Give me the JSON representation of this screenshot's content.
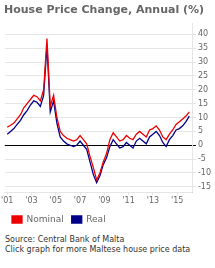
{
  "chart_data": {
    "type": "line",
    "title": "House Price Change, Annual (%)",
    "annotations": [
      "Source: Central Bank of Malta",
      "Click graph for more Maltese house price data"
    ],
    "x": [
      2001,
      2001.2727,
      2001.5455,
      2001.8182,
      2002.0909,
      2002.3636,
      2002.6364,
      2002.9091,
      2003.1818,
      2003.4545,
      2003.7273,
      2004,
      2004.2727,
      2004.5455,
      2004.8182,
      2005.0909,
      2005.3636,
      2005.6364,
      2005.9091,
      2006.1818,
      2006.4545,
      2006.7273,
      2007,
      2007.2727,
      2007.5455,
      2007.8182,
      2008.0909,
      2008.3636,
      2008.6364,
      2008.9091,
      2009.1818,
      2009.4545,
      2009.7273,
      2010,
      2010.2727,
      2010.5455,
      2010.8182,
      2011.0909,
      2011.3636,
      2011.6364,
      2011.9091,
      2012.1818,
      2012.4545,
      2012.7273,
      2013,
      2013.2727,
      2013.5455,
      2013.8182,
      2014.0909,
      2014.3636,
      2014.6364,
      2014.9091,
      2015.1818,
      2015.4545,
      2015.7273,
      2016
    ],
    "series": [
      {
        "name": "Nominal",
        "color": "#ee0000",
        "values": [
          6.5,
          7.2,
          8.0,
          9.5,
          11.0,
          13.5,
          15.0,
          16.5,
          18.0,
          17.5,
          16.0,
          20.0,
          38.5,
          14.0,
          18.0,
          10.0,
          5.0,
          3.5,
          2.5,
          2.0,
          1.5,
          2.0,
          3.5,
          2.0,
          0.5,
          -4.0,
          -8.0,
          -12.5,
          -10.0,
          -6.0,
          -3.0,
          2.0,
          4.5,
          3.0,
          1.5,
          2.0,
          3.5,
          2.5,
          2.0,
          4.0,
          5.0,
          4.0,
          3.0,
          5.5,
          6.0,
          7.0,
          5.5,
          3.0,
          2.0,
          4.0,
          5.5,
          7.5,
          8.5,
          9.5,
          10.5,
          12.0
        ]
      },
      {
        "name": "Real",
        "color": "#00008b",
        "values": [
          4.0,
          5.0,
          6.0,
          7.5,
          9.0,
          11.0,
          12.5,
          14.5,
          16.0,
          15.5,
          14.0,
          18.0,
          36.0,
          12.0,
          16.0,
          8.0,
          3.0,
          1.5,
          0.5,
          0.0,
          -0.5,
          0.0,
          1.5,
          0.0,
          -1.5,
          -6.0,
          -10.5,
          -13.5,
          -11.0,
          -7.0,
          -4.5,
          -0.5,
          2.0,
          0.5,
          -1.0,
          -0.5,
          1.0,
          0.0,
          -1.0,
          1.5,
          2.5,
          1.5,
          0.5,
          3.0,
          4.0,
          5.0,
          3.5,
          1.0,
          -0.5,
          2.0,
          3.5,
          5.5,
          6.0,
          7.0,
          8.5,
          10.5
        ]
      }
    ],
    "xlim": [
      2000.8,
      2016.3
    ],
    "xticks": [
      {
        "value": 2001,
        "label": "'01"
      },
      {
        "value": 2003,
        "label": "'03"
      },
      {
        "value": 2005,
        "label": "'05"
      },
      {
        "value": 2007,
        "label": "'07"
      },
      {
        "value": 2009,
        "label": "'09"
      },
      {
        "value": 2011,
        "label": "'11"
      },
      {
        "value": 2013,
        "label": "'13"
      },
      {
        "value": 2015,
        "label": "'15"
      }
    ],
    "ylim": [
      -17,
      44
    ],
    "yticks": [
      40,
      35,
      30,
      25,
      20,
      15,
      10,
      5,
      0,
      -5,
      -10,
      -15
    ],
    "grid": true,
    "legend": "bottom"
  }
}
